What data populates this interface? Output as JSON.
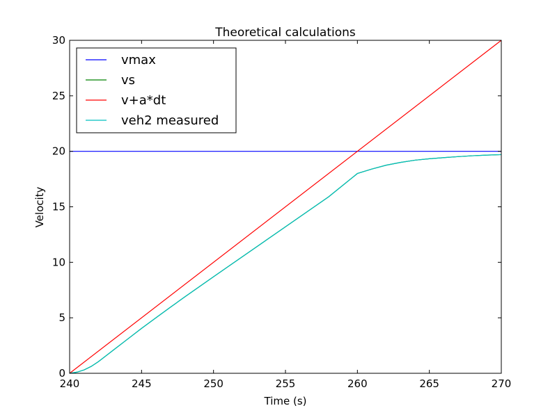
{
  "chart_data": {
    "type": "line",
    "title": "Theoretical calculations",
    "xlabel": "Time (s)",
    "ylabel": "Velocity",
    "xlim": [
      240,
      270
    ],
    "ylim": [
      0,
      30
    ],
    "xticks": [
      240,
      245,
      250,
      255,
      260,
      265,
      270
    ],
    "yticks": [
      0,
      5,
      10,
      15,
      20,
      25,
      30
    ],
    "grid": false,
    "legend_position": "upper-left",
    "series": [
      {
        "name": "vmax",
        "color": "#0000ff",
        "x": [
          240,
          270
        ],
        "y": [
          20,
          20
        ]
      },
      {
        "name": "vs",
        "color": "#008000",
        "x": [
          240,
          240.5,
          241,
          241.5,
          242,
          243,
          244,
          245,
          246,
          247,
          248,
          250,
          252,
          254,
          256,
          258,
          260,
          261,
          262,
          263,
          264,
          265,
          266,
          267,
          268,
          269,
          270
        ],
        "y": [
          0,
          0.1,
          0.3,
          0.62,
          1.05,
          2.05,
          3.05,
          4.05,
          5.0,
          5.95,
          6.88,
          8.7,
          10.5,
          12.3,
          14.1,
          15.9,
          18.0,
          18.4,
          18.75,
          19.0,
          19.2,
          19.33,
          19.43,
          19.52,
          19.6,
          19.66,
          19.7
        ]
      },
      {
        "name": "v+a*dt",
        "color": "#ff0000",
        "x": [
          240,
          270
        ],
        "y": [
          0,
          30
        ]
      },
      {
        "name": "veh2 measured",
        "color": "#00bfbf",
        "x": [
          240,
          240.5,
          241,
          241.5,
          242,
          243,
          244,
          245,
          246,
          247,
          248,
          250,
          252,
          254,
          256,
          258,
          260,
          261,
          262,
          263,
          264,
          265,
          266,
          267,
          268,
          269,
          270
        ],
        "y": [
          0,
          0.1,
          0.3,
          0.62,
          1.05,
          2.05,
          3.05,
          4.05,
          5.0,
          5.95,
          6.88,
          8.7,
          10.5,
          12.3,
          14.1,
          15.9,
          18.0,
          18.4,
          18.75,
          19.0,
          19.2,
          19.33,
          19.43,
          19.52,
          19.6,
          19.66,
          19.7
        ]
      }
    ]
  }
}
